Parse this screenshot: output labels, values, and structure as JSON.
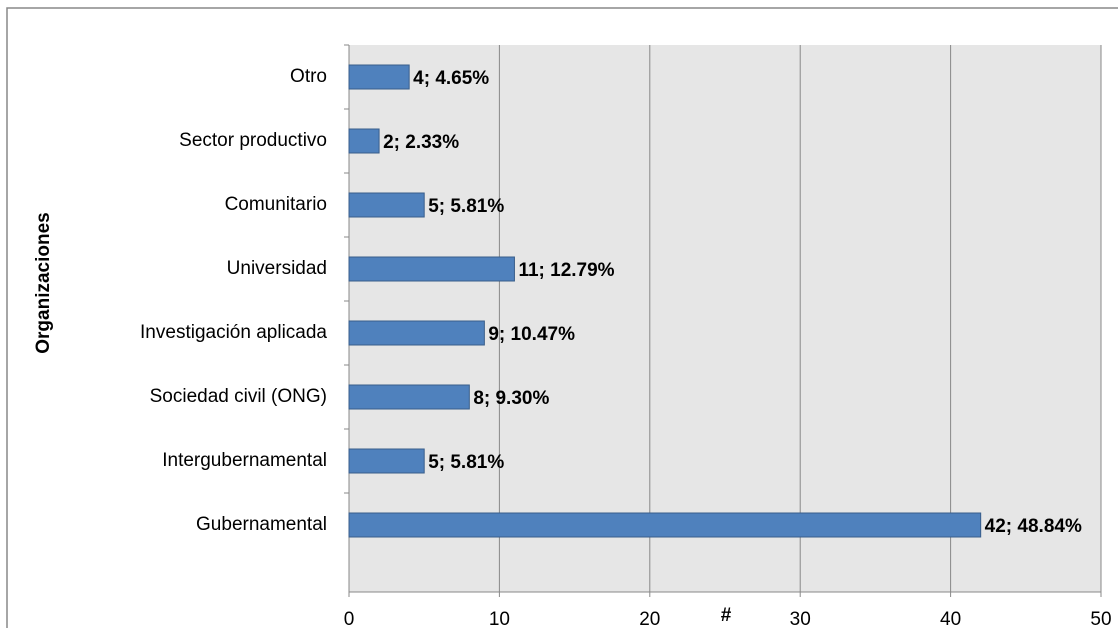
{
  "chart_data": {
    "type": "bar",
    "orientation": "horizontal",
    "x_label": "#",
    "y_label": "Organizaciones",
    "categories": [
      "Otro",
      "Sector productivo",
      "Comunitario",
      "Universidad",
      "Investigación aplicada",
      "Sociedad civil (ONG)",
      "Intergubernamental",
      "Gubernamental"
    ],
    "values": [
      4,
      2,
      5,
      11,
      9,
      8,
      5,
      42
    ],
    "value_labels": [
      "4; 4.65%",
      "2; 2.33%",
      "5; 5.81%",
      "11; 12.79%",
      "9; 10.47%",
      "8; 9.30%",
      "5; 5.81%",
      "42; 48.84%"
    ],
    "color": "#4f81bd",
    "xlim": [
      0,
      50
    ],
    "xticks": [
      0,
      10,
      20,
      30,
      40,
      50
    ],
    "grid": true
  }
}
